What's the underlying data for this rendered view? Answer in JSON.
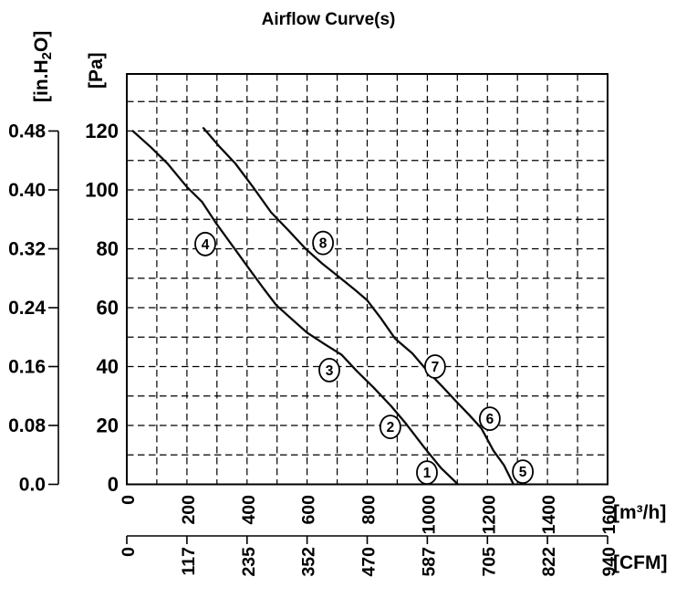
{
  "chart_data": {
    "type": "line",
    "title": "Airflow Curve(s)",
    "grid": "dashed",
    "legend_position": "none",
    "x_axis": {
      "unit_label": "[m³/h]",
      "tick_labels": [
        "0",
        "200",
        "400",
        "600",
        "800",
        "1000",
        "1200",
        "1400",
        "1600"
      ],
      "tick_values": [
        0,
        200,
        400,
        600,
        800,
        1000,
        1200,
        1400,
        1600
      ],
      "range": [
        0,
        1600
      ],
      "gridline_step": 100
    },
    "x_axis_secondary": {
      "unit_label": "[CFM]",
      "tick_labels": [
        "0",
        "117",
        "235",
        "352",
        "470",
        "587",
        "705",
        "822",
        "940"
      ]
    },
    "y_axis": {
      "unit_label": "[Pa]",
      "tick_labels": [
        "0",
        "20",
        "40",
        "60",
        "80",
        "100",
        "120"
      ],
      "tick_values": [
        0,
        20,
        40,
        60,
        80,
        100,
        120
      ],
      "range": [
        0,
        140
      ],
      "gridline_step": 10
    },
    "y_axis_secondary": {
      "unit_label_pre": "[in.H",
      "unit_label_sub": "2",
      "unit_label_post": "O]",
      "tick_labels": [
        "0.0",
        "0.08",
        "0.16",
        "0.24",
        "0.32",
        "0.40",
        "0.48"
      ]
    },
    "series": [
      {
        "name": "airflow-curve-1-4",
        "points": [
          [
            20,
            120
          ],
          [
            80,
            114.5
          ],
          [
            135,
            109
          ],
          [
            200,
            101
          ],
          [
            250,
            96
          ],
          [
            297,
            88.7
          ],
          [
            352,
            81
          ],
          [
            407,
            73.2
          ],
          [
            455,
            66.5
          ],
          [
            498,
            60.8
          ],
          [
            545,
            56.5
          ],
          [
            600,
            51.5
          ],
          [
            660,
            47.5
          ],
          [
            715,
            44
          ],
          [
            765,
            38.5
          ],
          [
            820,
            33
          ],
          [
            880,
            26.5
          ],
          [
            930,
            20.5
          ],
          [
            990,
            12.5
          ],
          [
            1045,
            5.6
          ],
          [
            1102,
            0
          ]
        ]
      },
      {
        "name": "airflow-curve-5-8",
        "points": [
          [
            255,
            121
          ],
          [
            310,
            114.5
          ],
          [
            361,
            109
          ],
          [
            420,
            101
          ],
          [
            480,
            92.4
          ],
          [
            540,
            86
          ],
          [
            595,
            80
          ],
          [
            650,
            75
          ],
          [
            710,
            70.1
          ],
          [
            760,
            66
          ],
          [
            800,
            62.5
          ],
          [
            845,
            56.5
          ],
          [
            893,
            49.5
          ],
          [
            950,
            44.5
          ],
          [
            1000,
            38.5
          ],
          [
            1052,
            33
          ],
          [
            1096,
            28.2
          ],
          [
            1140,
            23.5
          ],
          [
            1180,
            19
          ],
          [
            1220,
            11.5
          ],
          [
            1255,
            6.5
          ],
          [
            1287,
            0
          ]
        ]
      }
    ],
    "markers": [
      {
        "label": "1",
        "x": 999,
        "y": 4
      },
      {
        "label": "2",
        "x": 877,
        "y": 19.5
      },
      {
        "label": "3",
        "x": 674,
        "y": 38.8
      },
      {
        "label": "4",
        "x": 261,
        "y": 81.6
      },
      {
        "label": "5",
        "x": 1318,
        "y": 4.3
      },
      {
        "label": "6",
        "x": 1208,
        "y": 22.3
      },
      {
        "label": "7",
        "x": 1026,
        "y": 40
      },
      {
        "label": "8",
        "x": 653,
        "y": 82
      }
    ]
  }
}
